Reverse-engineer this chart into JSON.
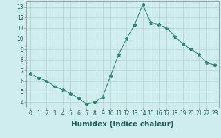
{
  "x": [
    0,
    1,
    2,
    3,
    4,
    5,
    6,
    7,
    8,
    9,
    10,
    11,
    12,
    13,
    14,
    15,
    16,
    17,
    18,
    19,
    20,
    21,
    22,
    23
  ],
  "y": [
    6.7,
    6.3,
    6.0,
    5.5,
    5.2,
    4.8,
    4.4,
    3.8,
    4.0,
    4.5,
    6.5,
    8.5,
    10.0,
    11.3,
    13.2,
    11.5,
    11.3,
    11.0,
    10.2,
    9.5,
    9.0,
    8.5,
    7.7,
    7.5
  ],
  "xlabel": "Humidex (Indice chaleur)",
  "ylim": [
    3.5,
    13.5
  ],
  "xlim": [
    -0.5,
    23.5
  ],
  "yticks": [
    4,
    5,
    6,
    7,
    8,
    9,
    10,
    11,
    12,
    13
  ],
  "xticks": [
    0,
    1,
    2,
    3,
    4,
    5,
    6,
    7,
    8,
    9,
    10,
    11,
    12,
    13,
    14,
    15,
    16,
    17,
    18,
    19,
    20,
    21,
    22,
    23
  ],
  "line_color": "#2e8b74",
  "marker": "*",
  "bg_color": "#d0eded",
  "grid_color": "#b8d8d8",
  "tick_label_fontsize": 5.5,
  "xlabel_fontsize": 7.5
}
